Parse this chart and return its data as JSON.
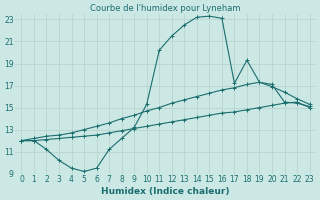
{
  "title": "Courbe de l'humidex pour Lyneham",
  "xlabel": "Humidex (Indice chaleur)",
  "background_color": "#cce8e5",
  "grid_color": "#b8d4d0",
  "line_color": "#1a6e6e",
  "xlim": [
    -0.5,
    23.5
  ],
  "ylim": [
    9,
    23.5
  ],
  "xticks": [
    0,
    1,
    2,
    3,
    4,
    5,
    6,
    7,
    8,
    9,
    10,
    11,
    12,
    13,
    14,
    15,
    16,
    17,
    18,
    19,
    20,
    21,
    22,
    23
  ],
  "yticks": [
    9,
    11,
    13,
    15,
    17,
    19,
    21,
    23
  ],
  "series": [
    {
      "x": [
        0,
        1,
        2,
        3,
        4,
        5,
        6,
        7,
        8,
        9,
        10,
        11,
        12,
        13,
        14,
        15,
        16,
        17,
        18,
        19,
        20,
        21,
        22,
        23
      ],
      "y": [
        12.0,
        12.0,
        12.1,
        12.2,
        12.3,
        12.4,
        12.5,
        12.7,
        12.9,
        13.1,
        13.3,
        13.5,
        13.7,
        13.9,
        14.1,
        14.3,
        14.5,
        14.6,
        14.8,
        15.0,
        15.2,
        15.4,
        15.5,
        15.0
      ]
    },
    {
      "x": [
        0,
        1,
        2,
        3,
        4,
        5,
        6,
        7,
        8,
        9,
        10,
        11,
        12,
        13,
        14,
        15,
        16,
        17,
        18,
        19,
        20,
        21,
        22,
        23
      ],
      "y": [
        12.0,
        12.2,
        12.4,
        12.5,
        12.7,
        13.0,
        13.3,
        13.6,
        14.0,
        14.3,
        14.7,
        15.0,
        15.4,
        15.7,
        16.0,
        16.3,
        16.6,
        16.8,
        17.1,
        17.3,
        16.9,
        16.4,
        15.8,
        15.3
      ]
    },
    {
      "x": [
        0,
        1,
        2,
        3,
        4,
        5,
        6,
        7,
        8,
        9,
        10,
        11,
        12,
        13,
        14,
        15,
        16,
        17,
        18,
        19,
        20,
        21,
        22,
        23
      ],
      "y": [
        12.0,
        12.0,
        11.2,
        10.2,
        9.5,
        9.2,
        9.5,
        11.2,
        12.2,
        13.2,
        15.3,
        20.2,
        21.5,
        22.5,
        23.2,
        23.3,
        23.1,
        17.2,
        19.3,
        17.3,
        17.1,
        15.5,
        15.4,
        15.1
      ]
    }
  ]
}
